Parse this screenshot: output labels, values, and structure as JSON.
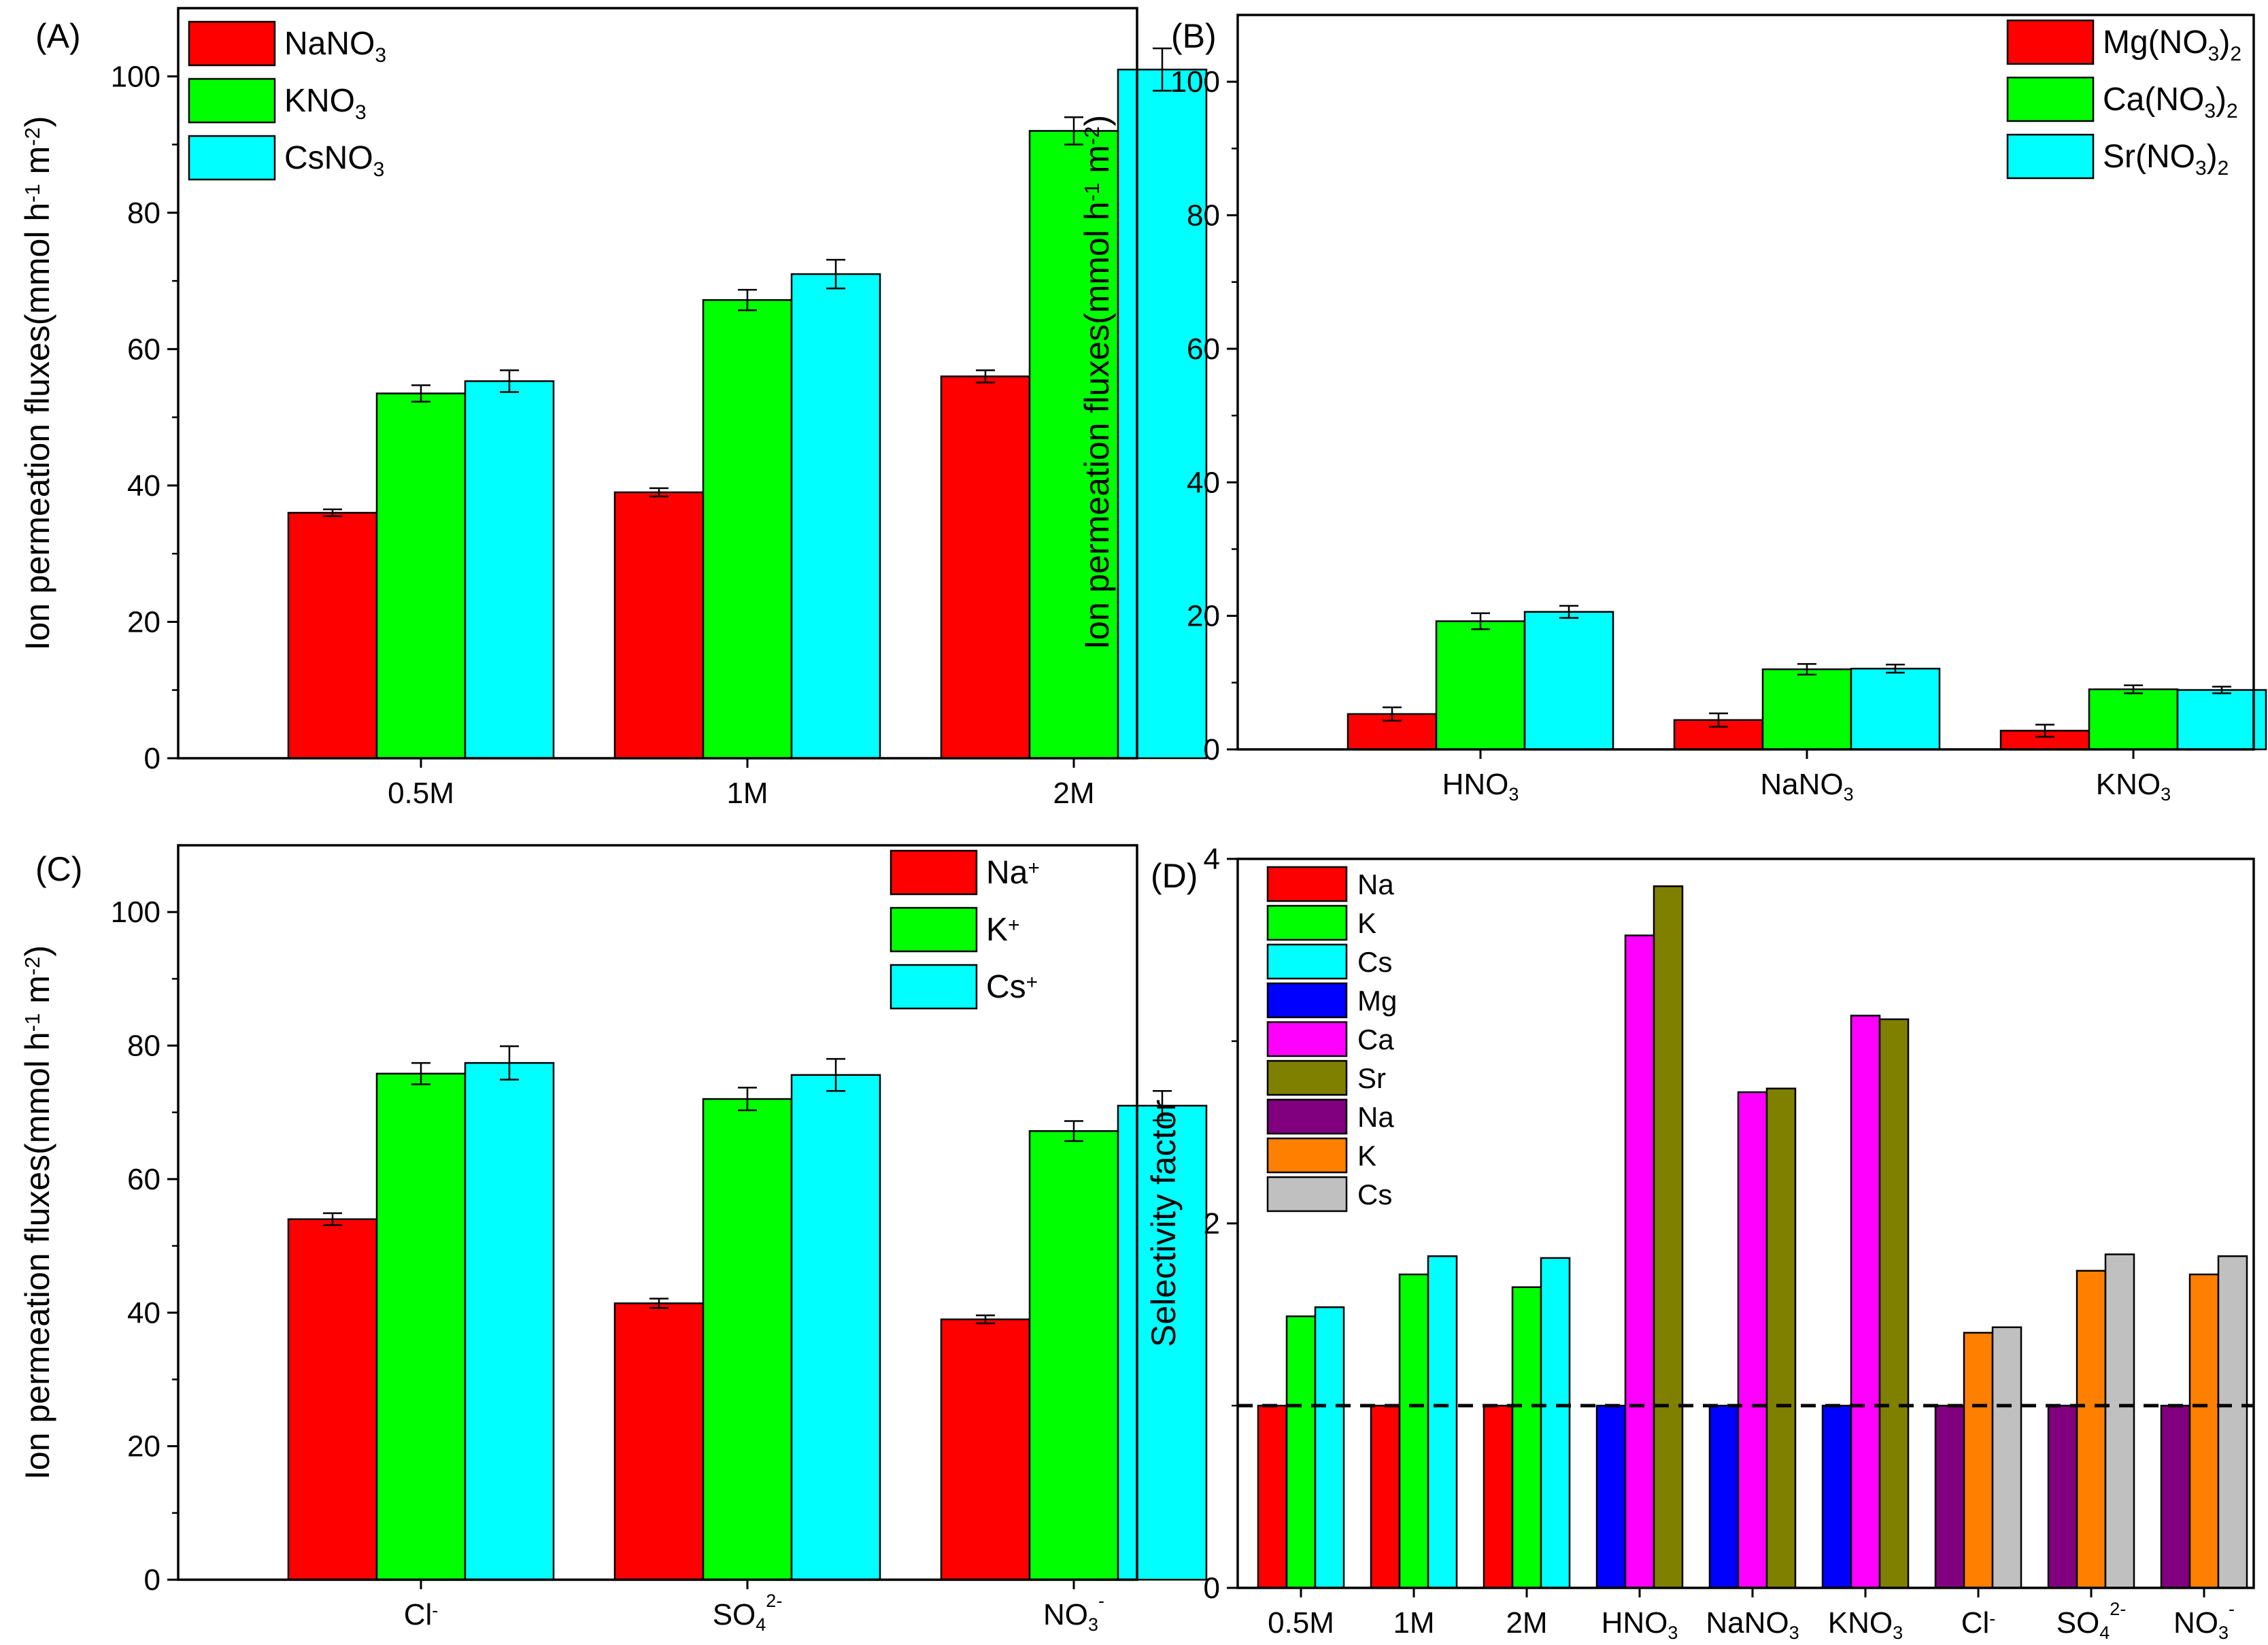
{
  "chart_data": [
    {
      "id": "A",
      "type": "bar",
      "panel_label": "(A)",
      "ylabel": "Ion permeation fluxes(mmol h-1 m-2)",
      "ylim": [
        0,
        110
      ],
      "yticks": [
        0,
        20,
        40,
        60,
        80,
        100
      ],
      "legend_position": "top-left",
      "categories": [
        {
          "main": "0.5M",
          "sub": "",
          "sup": ""
        },
        {
          "main": "1M",
          "sub": "",
          "sup": ""
        },
        {
          "main": "2M",
          "sub": "",
          "sup": ""
        }
      ],
      "series": [
        {
          "name": "NaNO3",
          "legend": {
            "main": "NaNO",
            "sub": "3",
            "post": ""
          },
          "color": "#ff0000",
          "values": [
            36,
            39,
            56
          ],
          "errors": [
            0.5,
            0.6,
            0.9
          ]
        },
        {
          "name": "KNO3",
          "legend": {
            "main": "KNO",
            "sub": "3",
            "post": ""
          },
          "color": "#00ff00",
          "values": [
            53.5,
            67.2,
            92
          ],
          "errors": [
            1.2,
            1.5,
            2.0
          ]
        },
        {
          "name": "CsNO3",
          "legend": {
            "main": "CsNO",
            "sub": "3",
            "post": ""
          },
          "color": "#00ffff",
          "values": [
            55.3,
            71,
            101
          ],
          "errors": [
            1.6,
            2.1,
            3.1
          ]
        }
      ]
    },
    {
      "id": "B",
      "type": "bar",
      "panel_label": "(B)",
      "ylabel": "Ion permeation fluxes(mmol h-1 m-2)",
      "ylim": [
        0,
        110
      ],
      "yticks": [
        0,
        20,
        40,
        60,
        80,
        100
      ],
      "legend_position": "top-right",
      "categories": [
        {
          "main": "HNO",
          "sub": "3",
          "sup": ""
        },
        {
          "main": "NaNO",
          "sub": "3",
          "sup": ""
        },
        {
          "main": "KNO",
          "sub": "3",
          "sup": ""
        }
      ],
      "series": [
        {
          "name": "Mg(NO3)2",
          "legend": {
            "main": "Mg(NO",
            "sub": "3",
            "post": ")",
            "post_sub": "2"
          },
          "color": "#ff0000",
          "values": [
            5.3,
            4.4,
            2.8
          ],
          "errors": [
            1.0,
            1.0,
            0.9
          ]
        },
        {
          "name": "Ca(NO3)2",
          "legend": {
            "main": "Ca(NO",
            "sub": "3",
            "post": ")",
            "post_sub": "2"
          },
          "color": "#00ff00",
          "values": [
            19.2,
            12.0,
            9.0
          ],
          "errors": [
            1.2,
            0.8,
            0.6
          ]
        },
        {
          "name": "Sr(NO3)2",
          "legend": {
            "main": "Sr(NO",
            "sub": "3",
            "post": ")",
            "post_sub": "2"
          },
          "color": "#00ffff",
          "values": [
            20.6,
            12.1,
            8.9
          ],
          "errors": [
            0.9,
            0.6,
            0.5
          ]
        }
      ]
    },
    {
      "id": "C",
      "type": "bar",
      "panel_label": "(C)",
      "ylabel": "Ion permeation fluxes(mmol h-1 m-2)",
      "ylim": [
        0,
        110
      ],
      "yticks": [
        0,
        20,
        40,
        60,
        80,
        100
      ],
      "legend_position": "top-right",
      "categories": [
        {
          "main": "Cl",
          "sub": "",
          "sup": "-"
        },
        {
          "main": "SO",
          "sub": "4",
          "sup": "2-"
        },
        {
          "main": "NO",
          "sub": "3",
          "sup": "-"
        }
      ],
      "series": [
        {
          "name": "Na+",
          "legend": {
            "main": "Na",
            "sup": "+"
          },
          "color": "#ff0000",
          "values": [
            54,
            41.4,
            39
          ],
          "errors": [
            0.9,
            0.7,
            0.6
          ]
        },
        {
          "name": "K+",
          "legend": {
            "main": "K",
            "sup": "+"
          },
          "color": "#00ff00",
          "values": [
            75.8,
            72,
            67.2
          ],
          "errors": [
            1.6,
            1.7,
            1.5
          ]
        },
        {
          "name": "Cs+",
          "legend": {
            "main": "Cs",
            "sup": "+"
          },
          "color": "#00ffff",
          "values": [
            77.4,
            75.6,
            71
          ],
          "errors": [
            2.5,
            2.4,
            2.2
          ]
        }
      ]
    },
    {
      "id": "D",
      "type": "bar",
      "panel_label": "(D)",
      "ylabel": "Selectivity factor",
      "ylim": [
        0,
        4
      ],
      "yticks": [
        0,
        2,
        4
      ],
      "reference_line": 1,
      "legend_position": "top-left",
      "legend": [
        {
          "label": "Na",
          "color": "#ff0000"
        },
        {
          "label": "K",
          "color": "#00ff00"
        },
        {
          "label": "Cs",
          "color": "#00ffff"
        },
        {
          "label": "Mg",
          "color": "#0000ff"
        },
        {
          "label": "Ca",
          "color": "#ff00ff"
        },
        {
          "label": "Sr",
          "color": "#808000"
        },
        {
          "label": "Na",
          "color": "#800080"
        },
        {
          "label": "K",
          "color": "#ff8000"
        },
        {
          "label": "Cs",
          "color": "#c0c0c0"
        }
      ],
      "categories": [
        {
          "main": "0.5M",
          "sub": "",
          "sup": "",
          "bars": [
            {
              "value": 1.0,
              "color": "#ff0000"
            },
            {
              "value": 1.49,
              "color": "#00ff00"
            },
            {
              "value": 1.54,
              "color": "#00ffff"
            }
          ]
        },
        {
          "main": "1M",
          "sub": "",
          "sup": "",
          "bars": [
            {
              "value": 1.0,
              "color": "#ff0000"
            },
            {
              "value": 1.72,
              "color": "#00ff00"
            },
            {
              "value": 1.82,
              "color": "#00ffff"
            }
          ]
        },
        {
          "main": "2M",
          "sub": "",
          "sup": "",
          "bars": [
            {
              "value": 1.0,
              "color": "#ff0000"
            },
            {
              "value": 1.65,
              "color": "#00ff00"
            },
            {
              "value": 1.81,
              "color": "#00ffff"
            }
          ]
        },
        {
          "main": "HNO",
          "sub": "3",
          "sup": "",
          "bars": [
            {
              "value": 1.0,
              "color": "#0000ff"
            },
            {
              "value": 3.58,
              "color": "#ff00ff"
            },
            {
              "value": 3.85,
              "color": "#808000"
            }
          ]
        },
        {
          "main": "NaNO",
          "sub": "3",
          "sup": "",
          "bars": [
            {
              "value": 1.0,
              "color": "#0000ff"
            },
            {
              "value": 2.72,
              "color": "#ff00ff"
            },
            {
              "value": 2.74,
              "color": "#808000"
            }
          ]
        },
        {
          "main": "KNO",
          "sub": "3",
          "sup": "",
          "bars": [
            {
              "value": 1.0,
              "color": "#0000ff"
            },
            {
              "value": 3.14,
              "color": "#ff00ff"
            },
            {
              "value": 3.12,
              "color": "#808000"
            }
          ]
        },
        {
          "main": "Cl",
          "sub": "",
          "sup": "-",
          "bars": [
            {
              "value": 1.0,
              "color": "#800080"
            },
            {
              "value": 1.4,
              "color": "#ff8000"
            },
            {
              "value": 1.43,
              "color": "#c0c0c0"
            }
          ]
        },
        {
          "main": "SO",
          "sub": "4",
          "sup": "2-",
          "bars": [
            {
              "value": 1.0,
              "color": "#800080"
            },
            {
              "value": 1.74,
              "color": "#ff8000"
            },
            {
              "value": 1.83,
              "color": "#c0c0c0"
            }
          ]
        },
        {
          "main": "NO",
          "sub": "3",
          "sup": "-",
          "bars": [
            {
              "value": 1.0,
              "color": "#800080"
            },
            {
              "value": 1.72,
              "color": "#ff8000"
            },
            {
              "value": 1.82,
              "color": "#c0c0c0"
            }
          ]
        }
      ]
    }
  ]
}
